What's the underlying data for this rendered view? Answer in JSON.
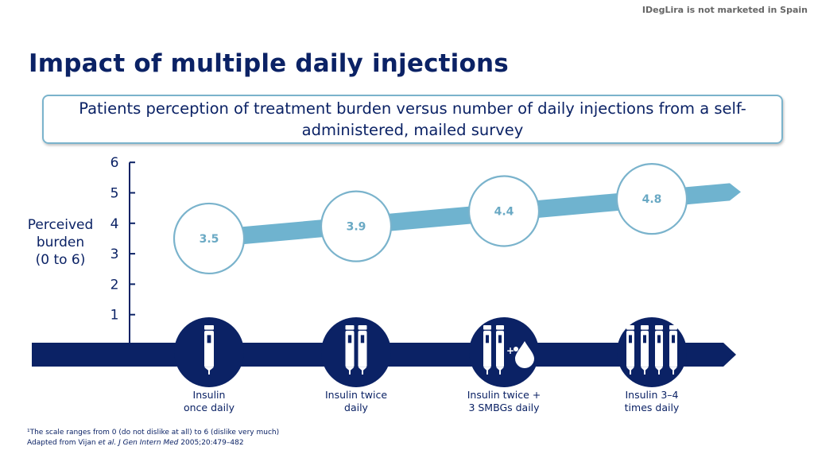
{
  "disclaimer": "IDegLira is not marketed in Spain",
  "title": "Impact of multiple daily injections",
  "subtitle": "Patients perception of treatment burden versus number of daily injections from a self-administered, mailed survey",
  "chart_data": {
    "type": "line",
    "ylabel": "Perceived\nburden\n(0 to 6)",
    "yticks": [
      1,
      2,
      3,
      4,
      5,
      6
    ],
    "ylim": [
      0,
      6
    ],
    "categories": [
      "Insulin\nonce daily",
      "Insulin twice\ndaily",
      "Insulin twice +\n3 SMBGs daily",
      "Insulin 3–4\ntimes daily"
    ],
    "values": [
      3.5,
      3.9,
      4.4,
      4.8
    ],
    "icons": [
      "single-pen-icon",
      "two-pens-icon",
      "two-pens-blood-drop-icon",
      "four-pens-icon"
    ],
    "colors": {
      "navy": "#0b2265",
      "accent": "#6fb3cf",
      "value_text": "#6aa9c4",
      "circle_border": "#7ab3cc"
    }
  },
  "footnote1": "¹The scale ranges from 0 (do not dislike at all) to 6 (dislike very much)",
  "footnote2_prefix": "Adapted from Vijan ",
  "footnote2_italic": "et al. J Gen Intern Med",
  "footnote2_suffix": " 2005;20:479–482"
}
